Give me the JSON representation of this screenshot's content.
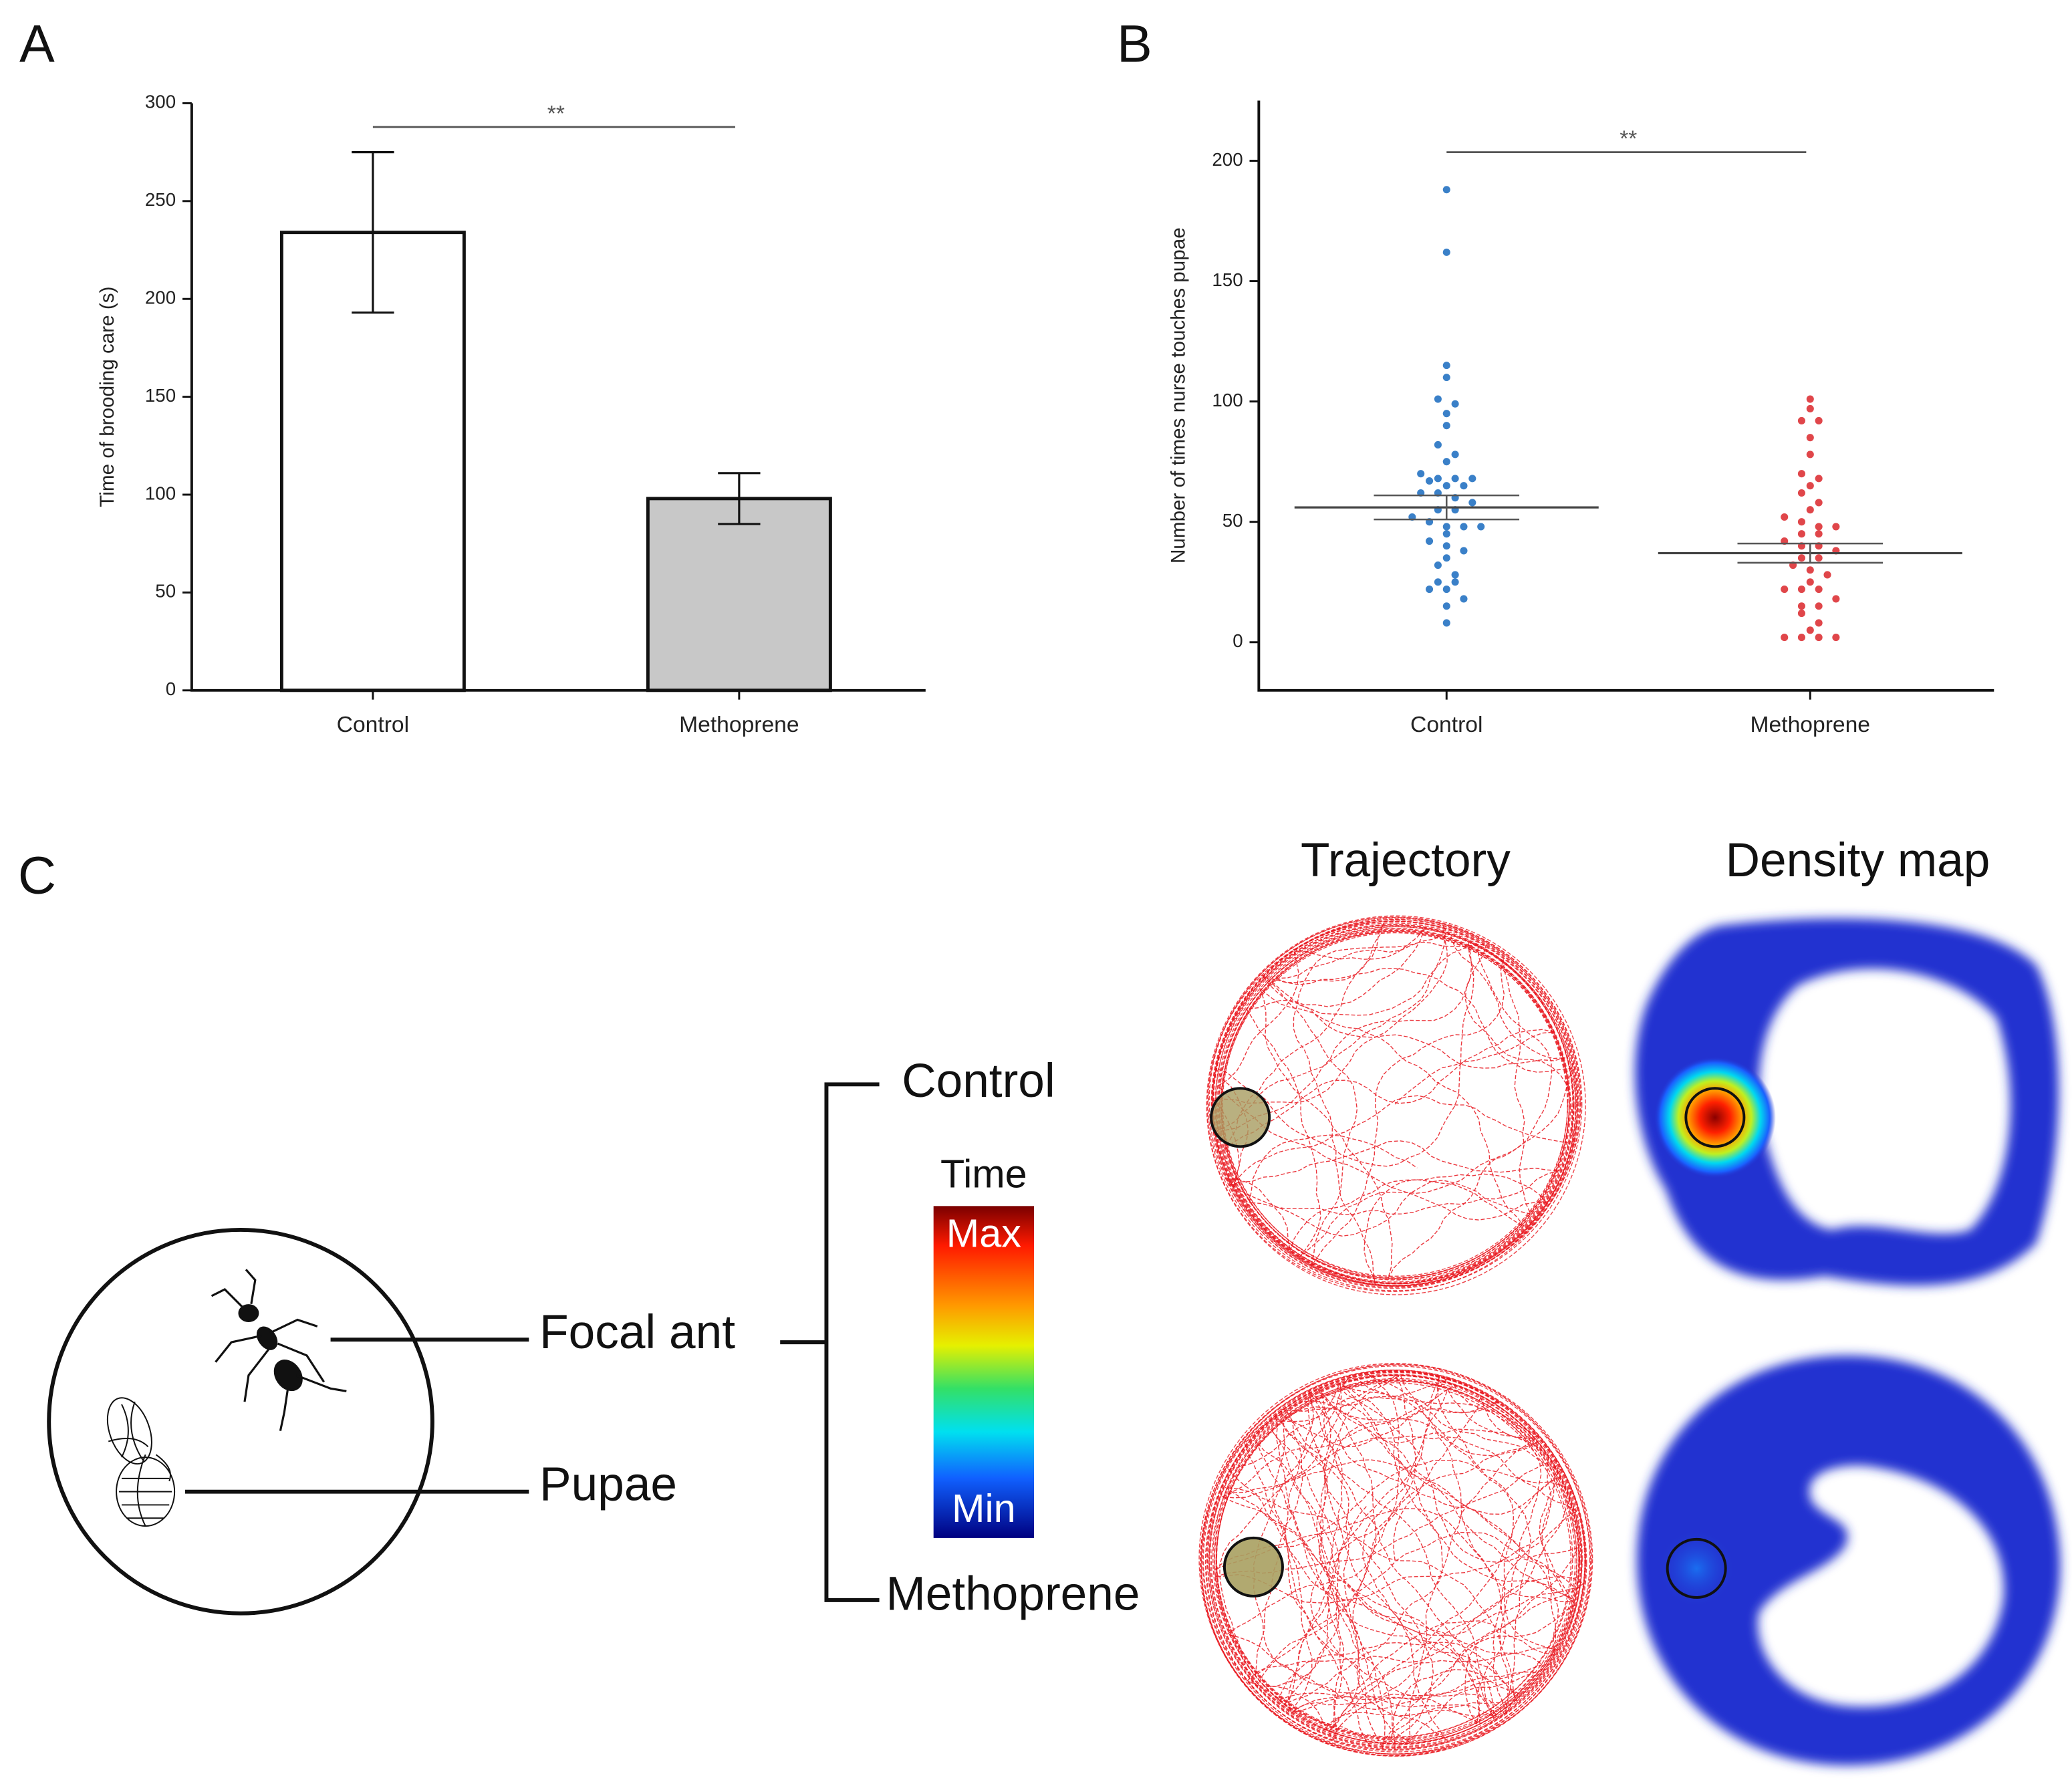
{
  "chart_data": [
    {
      "type": "bar",
      "panel_label": "A",
      "ylabel": "Time of brooding care (s)",
      "categories": [
        "Control",
        "Methoprene"
      ],
      "values": [
        234,
        98
      ],
      "errors": [
        41,
        13
      ],
      "colors": [
        "#ffffff",
        "#c8c8c8"
      ],
      "ylim": [
        0,
        300
      ],
      "yticks": [
        0,
        50,
        100,
        150,
        200,
        250,
        300
      ],
      "annotation": "**"
    },
    {
      "type": "scatter",
      "panel_label": "B",
      "ylabel": "Number of times nurse touches pupae",
      "categories": [
        "Control",
        "Methoprene"
      ],
      "points": [
        [
          188,
          162,
          115,
          110,
          101,
          99,
          95,
          90,
          82,
          78,
          75,
          70,
          68,
          68,
          68,
          67,
          65,
          65,
          62,
          62,
          60,
          58,
          55,
          55,
          52,
          50,
          48,
          48,
          48,
          45,
          42,
          40,
          38,
          35,
          32,
          28,
          25,
          25,
          22,
          22,
          18,
          15,
          8
        ],
        [
          101,
          97,
          92,
          92,
          85,
          78,
          70,
          68,
          65,
          62,
          58,
          55,
          52,
          50,
          48,
          48,
          45,
          45,
          42,
          40,
          40,
          38,
          35,
          35,
          32,
          30,
          28,
          25,
          22,
          22,
          22,
          18,
          15,
          15,
          12,
          8,
          5,
          2,
          2,
          2,
          2
        ]
      ],
      "colors": [
        "#3a80c8",
        "#e0464a"
      ],
      "means": [
        56,
        37
      ],
      "errors": [
        5,
        4
      ],
      "ylim": [
        -20,
        225
      ],
      "yticks": [
        0,
        50,
        100,
        150,
        200
      ],
      "annotation": "**"
    }
  ],
  "panel_c": {
    "label": "C",
    "columns": [
      "Trajectory",
      "Density map"
    ],
    "groups": [
      "Control",
      "Methoprene"
    ],
    "parts": [
      "Focal ant",
      "Pupae"
    ],
    "colorbar": {
      "title": "Time",
      "max": "Max",
      "min": "Min"
    }
  }
}
